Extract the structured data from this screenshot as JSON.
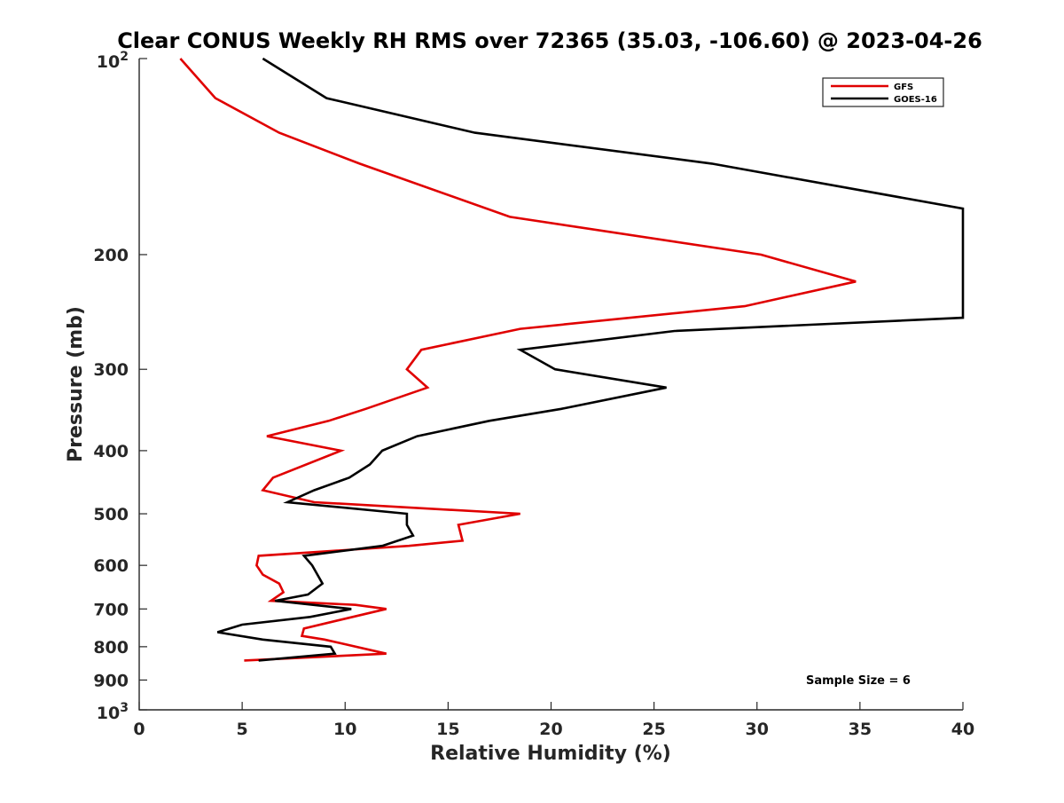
{
  "chart_data": {
    "type": "line",
    "title": "Clear CONUS Weekly RH RMS over 72365 (35.03, -106.60) @ 2023-04-26",
    "xlabel": "Relative Humidity (%)",
    "ylabel": "Pressure (mb)",
    "xlim": [
      0,
      40
    ],
    "ylim": [
      100,
      1000
    ],
    "yscale": "log",
    "y_reversed": true,
    "grid": false,
    "legend_position": "top-right",
    "x_ticks": [
      {
        "value": 0,
        "label": "0"
      },
      {
        "value": 5,
        "label": "5"
      },
      {
        "value": 10,
        "label": "10"
      },
      {
        "value": 15,
        "label": "15"
      },
      {
        "value": 20,
        "label": "20"
      },
      {
        "value": 25,
        "label": "25"
      },
      {
        "value": 30,
        "label": "30"
      },
      {
        "value": 35,
        "label": "35"
      },
      {
        "value": 40,
        "label": "40"
      }
    ],
    "y_ticks": [
      {
        "value": 100,
        "base": "10",
        "exp": "2"
      },
      {
        "value": 200,
        "label": "200"
      },
      {
        "value": 300,
        "label": "300"
      },
      {
        "value": 400,
        "label": "400"
      },
      {
        "value": 500,
        "label": "500"
      },
      {
        "value": 600,
        "label": "600"
      },
      {
        "value": 700,
        "label": "700"
      },
      {
        "value": 800,
        "label": "800"
      },
      {
        "value": 900,
        "label": "900"
      },
      {
        "value": 1000,
        "base": "10",
        "exp": "3"
      }
    ],
    "annotation": "Sample Size = 6",
    "series": [
      {
        "name": "GFS",
        "color": "#e00000",
        "points": [
          {
            "x": 2.0,
            "y": 100
          },
          {
            "x": 3.7,
            "y": 115
          },
          {
            "x": 6.8,
            "y": 130
          },
          {
            "x": 10.7,
            "y": 145
          },
          {
            "x": 18.0,
            "y": 175
          },
          {
            "x": 30.2,
            "y": 200
          },
          {
            "x": 34.8,
            "y": 220
          },
          {
            "x": 29.4,
            "y": 240
          },
          {
            "x": 18.5,
            "y": 260
          },
          {
            "x": 13.7,
            "y": 280
          },
          {
            "x": 13.0,
            "y": 300
          },
          {
            "x": 14.0,
            "y": 320
          },
          {
            "x": 11.0,
            "y": 345
          },
          {
            "x": 9.2,
            "y": 360
          },
          {
            "x": 6.2,
            "y": 380
          },
          {
            "x": 9.8,
            "y": 400
          },
          {
            "x": 6.5,
            "y": 440
          },
          {
            "x": 6.0,
            "y": 460
          },
          {
            "x": 8.5,
            "y": 480
          },
          {
            "x": 18.5,
            "y": 500
          },
          {
            "x": 15.5,
            "y": 520
          },
          {
            "x": 15.7,
            "y": 550
          },
          {
            "x": 13.1,
            "y": 560
          },
          {
            "x": 5.8,
            "y": 580
          },
          {
            "x": 5.7,
            "y": 600
          },
          {
            "x": 6.0,
            "y": 620
          },
          {
            "x": 6.8,
            "y": 640
          },
          {
            "x": 7.0,
            "y": 660
          },
          {
            "x": 6.4,
            "y": 680
          },
          {
            "x": 10.5,
            "y": 690
          },
          {
            "x": 12.0,
            "y": 700
          },
          {
            "x": 8.0,
            "y": 750
          },
          {
            "x": 7.9,
            "y": 770
          },
          {
            "x": 9.0,
            "y": 780
          },
          {
            "x": 12.0,
            "y": 820
          },
          {
            "x": 5.1,
            "y": 840
          }
        ]
      },
      {
        "name": "GOES-16",
        "color": "#000000",
        "points": [
          {
            "x": 6.0,
            "y": 100
          },
          {
            "x": 9.1,
            "y": 115
          },
          {
            "x": 16.3,
            "y": 130
          },
          {
            "x": 27.8,
            "y": 145
          },
          {
            "x": 40.0,
            "y": 170
          },
          {
            "x": 40.0,
            "y": 250
          },
          {
            "x": 26.0,
            "y": 262
          },
          {
            "x": 18.5,
            "y": 280
          },
          {
            "x": 20.2,
            "y": 300
          },
          {
            "x": 25.6,
            "y": 320
          },
          {
            "x": 20.5,
            "y": 345
          },
          {
            "x": 17.0,
            "y": 360
          },
          {
            "x": 13.5,
            "y": 380
          },
          {
            "x": 11.8,
            "y": 400
          },
          {
            "x": 11.2,
            "y": 420
          },
          {
            "x": 10.2,
            "y": 440
          },
          {
            "x": 8.5,
            "y": 460
          },
          {
            "x": 7.2,
            "y": 480
          },
          {
            "x": 13.0,
            "y": 500
          },
          {
            "x": 13.0,
            "y": 520
          },
          {
            "x": 13.3,
            "y": 540
          },
          {
            "x": 11.8,
            "y": 560
          },
          {
            "x": 8.0,
            "y": 580
          },
          {
            "x": 8.4,
            "y": 600
          },
          {
            "x": 8.9,
            "y": 640
          },
          {
            "x": 8.2,
            "y": 665
          },
          {
            "x": 6.6,
            "y": 680
          },
          {
            "x": 10.3,
            "y": 700
          },
          {
            "x": 8.3,
            "y": 720
          },
          {
            "x": 5.0,
            "y": 740
          },
          {
            "x": 3.8,
            "y": 760
          },
          {
            "x": 6.0,
            "y": 780
          },
          {
            "x": 9.3,
            "y": 800
          },
          {
            "x": 9.5,
            "y": 820
          },
          {
            "x": 5.8,
            "y": 840
          }
        ]
      }
    ]
  }
}
